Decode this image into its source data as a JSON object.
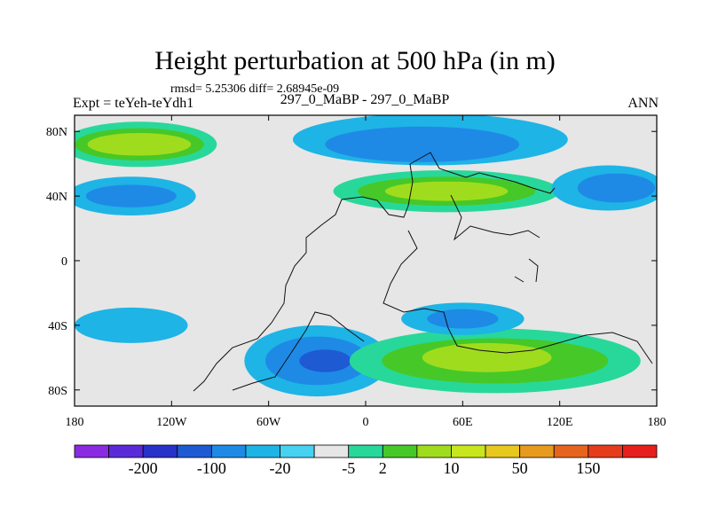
{
  "header": {
    "title": "Height perturbation at 500 hPa (in m)",
    "stats": "rmsd= 5.25306 diff= 2.68945e-09",
    "left_label": "Expt = teYeh-teYdh1",
    "center_label": "297_0_MaBP - 297_0_MaBP",
    "right_label": "ANN"
  },
  "chart_data": {
    "type": "contour-map",
    "title": "Height perturbation at 500 hPa (in m)",
    "xlim": [
      -180,
      180
    ],
    "ylim": [
      -90,
      90
    ],
    "x_ticks": [
      {
        "value": -180,
        "label": "180"
      },
      {
        "value": -120,
        "label": "120W"
      },
      {
        "value": -60,
        "label": "60W"
      },
      {
        "value": 0,
        "label": "0"
      },
      {
        "value": 60,
        "label": "60E"
      },
      {
        "value": 120,
        "label": "120E"
      },
      {
        "value": 180,
        "label": "180"
      }
    ],
    "y_ticks": [
      {
        "value": 80,
        "label": "80N"
      },
      {
        "value": 40,
        "label": "40N"
      },
      {
        "value": 0,
        "label": "0"
      },
      {
        "value": -40,
        "label": "40S"
      },
      {
        "value": -80,
        "label": "80S"
      }
    ],
    "colorbar": {
      "colors": [
        "#8a2be2",
        "#5a2ad8",
        "#2832c8",
        "#1e5ad2",
        "#1e8ae6",
        "#1eb4e6",
        "#46d2f0",
        "#e6e6e6",
        "#28d89a",
        "#46c828",
        "#a0dc1e",
        "#c8e61e",
        "#e6c81e",
        "#e69a1e",
        "#e6641e",
        "#e63c1e",
        "#e61e1e"
      ],
      "labels": [
        {
          "after_index": 1,
          "text": "-200"
        },
        {
          "after_index": 3,
          "text": "-100"
        },
        {
          "after_index": 5,
          "text": "-20"
        },
        {
          "after_index": 7,
          "text": "-5"
        },
        {
          "after_index": 8,
          "text": "2"
        },
        {
          "after_index": 10,
          "text": "10"
        },
        {
          "after_index": 12,
          "text": "50"
        },
        {
          "after_index": 14,
          "text": "150"
        }
      ]
    },
    "fields": [
      {
        "lon": -140,
        "lat": 72,
        "rx": 48,
        "ry": 14,
        "color_index": 8
      },
      {
        "lon": -140,
        "lat": 72,
        "rx": 40,
        "ry": 10,
        "color_index": 9
      },
      {
        "lon": -140,
        "lat": 72,
        "rx": 32,
        "ry": 7,
        "color_index": 10
      },
      {
        "lon": -145,
        "lat": 40,
        "rx": 40,
        "ry": 12,
        "color_index": 5
      },
      {
        "lon": -145,
        "lat": 40,
        "rx": 28,
        "ry": 7,
        "color_index": 4
      },
      {
        "lon": 40,
        "lat": 75,
        "rx": 85,
        "ry": 16,
        "color_index": 5
      },
      {
        "lon": 35,
        "lat": 72,
        "rx": 60,
        "ry": 11,
        "color_index": 4
      },
      {
        "lon": 50,
        "lat": 43,
        "rx": 70,
        "ry": 13,
        "color_index": 8
      },
      {
        "lon": 50,
        "lat": 43,
        "rx": 55,
        "ry": 9,
        "color_index": 9
      },
      {
        "lon": 50,
        "lat": 43,
        "rx": 38,
        "ry": 6,
        "color_index": 10
      },
      {
        "lon": 150,
        "lat": 45,
        "rx": 35,
        "ry": 14,
        "color_index": 5
      },
      {
        "lon": 155,
        "lat": 45,
        "rx": 24,
        "ry": 9,
        "color_index": 4
      },
      {
        "lon": -145,
        "lat": -40,
        "rx": 35,
        "ry": 11,
        "color_index": 5
      },
      {
        "lon": -30,
        "lat": -62,
        "rx": 45,
        "ry": 22,
        "color_index": 5
      },
      {
        "lon": -30,
        "lat": -62,
        "rx": 32,
        "ry": 15,
        "color_index": 4
      },
      {
        "lon": -25,
        "lat": -62,
        "rx": 16,
        "ry": 7,
        "color_index": 3
      },
      {
        "lon": 80,
        "lat": -62,
        "rx": 90,
        "ry": 20,
        "color_index": 8
      },
      {
        "lon": 80,
        "lat": -62,
        "rx": 70,
        "ry": 14,
        "color_index": 9
      },
      {
        "lon": 75,
        "lat": -60,
        "rx": 40,
        "ry": 9,
        "color_index": 10
      },
      {
        "lon": 60,
        "lat": -36,
        "rx": 38,
        "ry": 10,
        "color_index": 5
      },
      {
        "lon": 60,
        "lat": -36,
        "rx": 22,
        "ry": 6,
        "color_index": 4
      }
    ],
    "colorbar_note": "17 color bands from purple (most negative) through gray (near zero) to red (most positive)"
  }
}
